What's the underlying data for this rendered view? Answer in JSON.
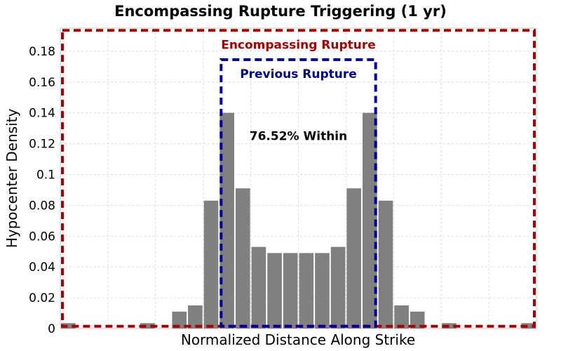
{
  "chart_data": {
    "type": "bar",
    "title": "Encompassing Rupture Triggering (1 yr)",
    "xlabel": "Normalized Distance Along Strike",
    "ylabel": "Hypocenter Density",
    "xlim": [
      0,
      30
    ],
    "ylim": [
      0,
      0.195
    ],
    "yticks": [
      {
        "value": 0,
        "label": "0"
      },
      {
        "value": 0.02,
        "label": "0.02"
      },
      {
        "value": 0.04,
        "label": "0.04"
      },
      {
        "value": 0.06,
        "label": "0.06"
      },
      {
        "value": 0.08,
        "label": "0.08"
      },
      {
        "value": 0.1,
        "label": "0.1"
      },
      {
        "value": 0.12,
        "label": "0.12"
      },
      {
        "value": 0.14,
        "label": "0.14"
      },
      {
        "value": 0.16,
        "label": "0.16"
      },
      {
        "value": 0.18,
        "label": "0.18"
      }
    ],
    "bins": [
      {
        "x": 0,
        "value": 0.0035
      },
      {
        "x": 1,
        "value": 0
      },
      {
        "x": 2,
        "value": 0
      },
      {
        "x": 3,
        "value": 0
      },
      {
        "x": 4,
        "value": 0
      },
      {
        "x": 5,
        "value": 0.0035
      },
      {
        "x": 6,
        "value": 0
      },
      {
        "x": 7,
        "value": 0.011
      },
      {
        "x": 8,
        "value": 0.015
      },
      {
        "x": 9,
        "value": 0.083
      },
      {
        "x": 10,
        "value": 0.14
      },
      {
        "x": 11,
        "value": 0.091
      },
      {
        "x": 12,
        "value": 0.053
      },
      {
        "x": 13,
        "value": 0.049
      },
      {
        "x": 14,
        "value": 0.049
      },
      {
        "x": 15,
        "value": 0.049
      },
      {
        "x": 16,
        "value": 0.049
      },
      {
        "x": 17,
        "value": 0.053
      },
      {
        "x": 18,
        "value": 0.091
      },
      {
        "x": 19,
        "value": 0.14
      },
      {
        "x": 20,
        "value": 0.083
      },
      {
        "x": 21,
        "value": 0.015
      },
      {
        "x": 22,
        "value": 0.011
      },
      {
        "x": 23,
        "value": 0
      },
      {
        "x": 24,
        "value": 0.0035
      },
      {
        "x": 25,
        "value": 0
      },
      {
        "x": 26,
        "value": 0
      },
      {
        "x": 27,
        "value": 0
      },
      {
        "x": 28,
        "value": 0
      },
      {
        "x": 29,
        "value": 0.0035
      }
    ],
    "bar_color": "#808080",
    "regions": [
      {
        "label": "Encompassing Rupture",
        "x0": 0,
        "x1": 30,
        "y0": 0.0015,
        "y1": 0.1935,
        "color": "#aa0000"
      },
      {
        "label": "Previous Rupture",
        "x0": 10,
        "x1": 20,
        "y0": 0.0015,
        "y1": 0.1745,
        "color": "#000099"
      }
    ],
    "annotation": {
      "text": "76.52% Within",
      "x": 15,
      "y": 0.125,
      "color": "#000000"
    }
  }
}
